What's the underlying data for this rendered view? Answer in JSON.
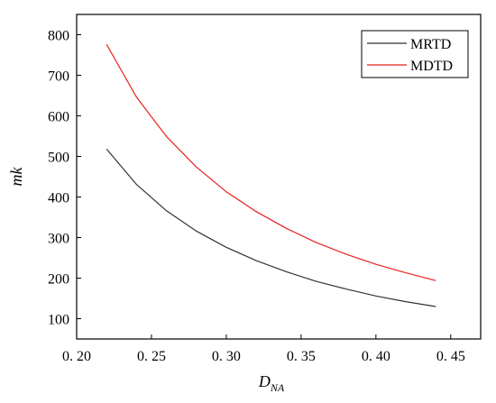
{
  "chart_data": {
    "type": "line",
    "xlabel_main": "D",
    "xlabel_sub": "NA",
    "ylabel": "mk",
    "xlim": [
      0.2,
      0.47
    ],
    "ylim": [
      50,
      850
    ],
    "xticks": [
      0.2,
      0.25,
      0.3,
      0.35,
      0.4,
      0.45
    ],
    "xtick_labels": [
      "0. 20",
      "0. 25",
      "0. 30",
      "0. 35",
      "0. 40",
      "0. 45"
    ],
    "yticks": [
      100,
      200,
      300,
      400,
      500,
      600,
      700,
      800
    ],
    "ytick_labels": [
      "100",
      "200",
      "300",
      "400",
      "500",
      "600",
      "700",
      "800"
    ],
    "grid": false,
    "legend_position": "top-right",
    "series": [
      {
        "name": "MRTD",
        "color": "#333333",
        "x": [
          0.22,
          0.24,
          0.26,
          0.28,
          0.3,
          0.32,
          0.34,
          0.36,
          0.38,
          0.4,
          0.42,
          0.44
        ],
        "y": [
          518,
          431,
          366,
          316,
          276,
          243,
          216,
          192,
          173,
          156,
          142,
          130
        ]
      },
      {
        "name": "MDTD",
        "color": "#e8201c",
        "x": [
          0.22,
          0.24,
          0.26,
          0.28,
          0.3,
          0.32,
          0.34,
          0.36,
          0.38,
          0.4,
          0.42,
          0.44
        ],
        "y": [
          776,
          646,
          549,
          474,
          413,
          364,
          323,
          288,
          259,
          234,
          213,
          194
        ]
      }
    ]
  }
}
